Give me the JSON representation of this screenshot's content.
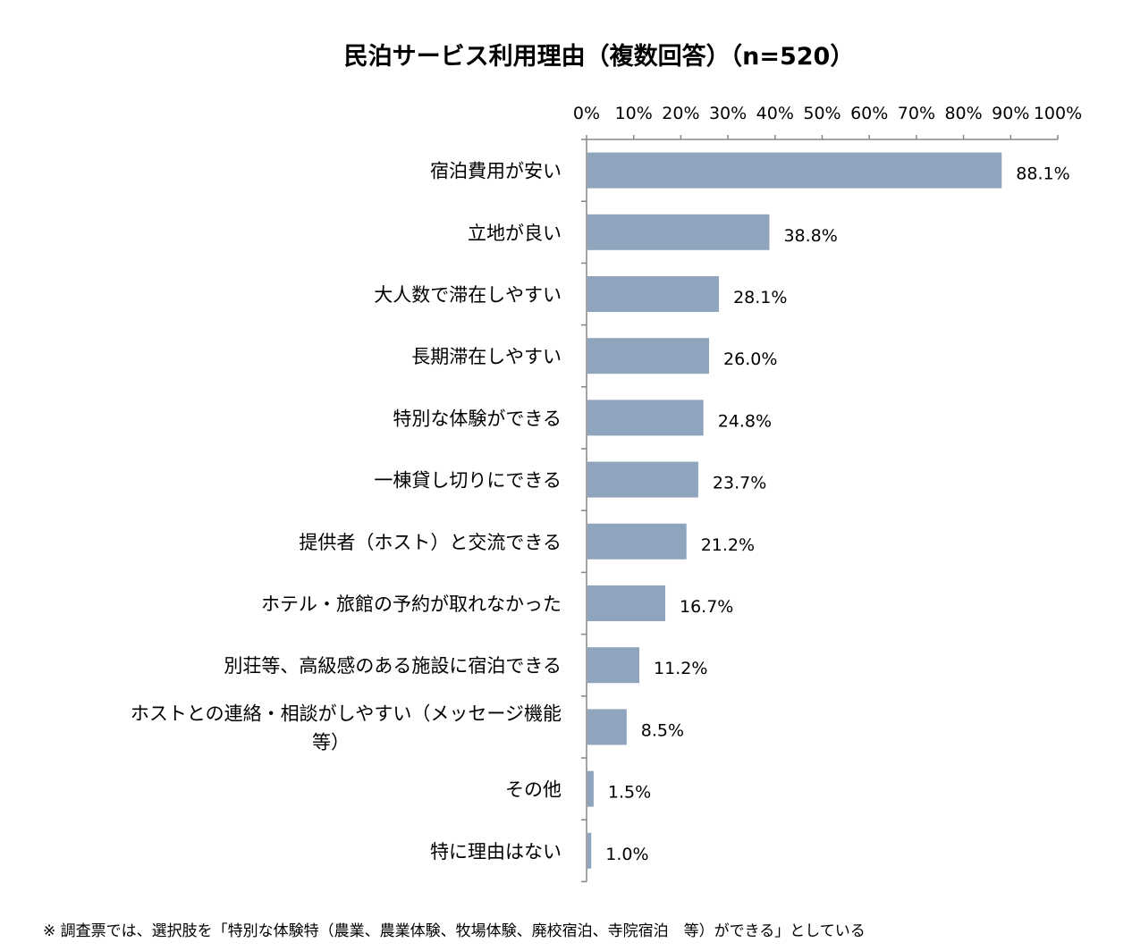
{
  "chart_data": {
    "type": "bar",
    "orientation": "horizontal",
    "title": "民泊サービス利用理由（複数回答）（n=520）",
    "xlabel": "",
    "ylabel": "",
    "xlim": [
      0,
      100
    ],
    "x_ticks": [
      "0%",
      "10%",
      "20%",
      "30%",
      "40%",
      "50%",
      "60%",
      "70%",
      "80%",
      "90%",
      "100%"
    ],
    "categories": [
      [
        "宿泊費用が安い"
      ],
      [
        "立地が良い"
      ],
      [
        "大人数で滞在しやすい"
      ],
      [
        "長期滞在しやすい"
      ],
      [
        "特別な体験ができる"
      ],
      [
        "一棟貸し切りにできる"
      ],
      [
        "提供者（ホスト）と交流できる"
      ],
      [
        "ホテル・旅館の予約が取れなかった"
      ],
      [
        "別荘等、高級感のある施設に宿泊できる"
      ],
      [
        "ホストとの連絡・相談がしやすい（メッセージ機能",
        "等）"
      ],
      [
        "その他"
      ],
      [
        "特に理由はない"
      ]
    ],
    "values": [
      88.1,
      38.8,
      28.1,
      26.0,
      24.8,
      23.7,
      21.2,
      16.7,
      11.2,
      8.5,
      1.5,
      1.0
    ],
    "value_labels": [
      "88.1%",
      "38.8%",
      "28.1%",
      "26.0%",
      "24.8%",
      "23.7%",
      "21.2%",
      "16.7%",
      "11.2%",
      "8.5%",
      "1.5%",
      "1.0%"
    ],
    "bar_color": "#8fa4bd",
    "axis_color": "#868686",
    "grid": false,
    "legend": "none",
    "footnote": "※ 調査票では、選択肢を「特別な体験特（農業、農業体験、牧場体験、廃校宿泊、寺院宿泊　等）ができる」としている"
  }
}
